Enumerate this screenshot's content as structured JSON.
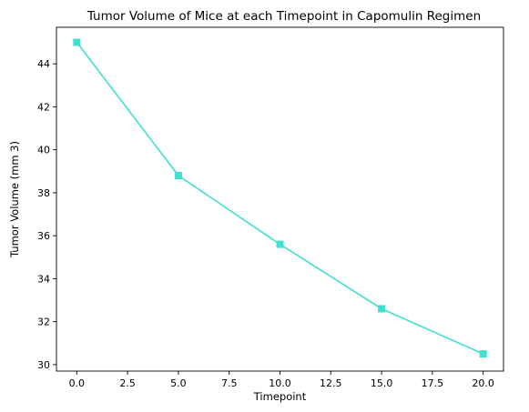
{
  "chart_data": {
    "type": "line",
    "title": "Tumor Volume of Mice at each Timepoint in Capomulin Regimen",
    "xlabel": "Timepoint",
    "ylabel": "Tumor Volume (mm 3)",
    "x": [
      0,
      5,
      10,
      15,
      20
    ],
    "series": [
      {
        "values": [
          45.0,
          38.8,
          35.6,
          32.6,
          30.5
        ],
        "color": "#40E0D0",
        "marker": "square"
      }
    ],
    "xlim": [
      -1,
      21
    ],
    "ylim": [
      29.7,
      45.7
    ],
    "xticks": [
      0,
      2.5,
      5,
      7.5,
      10,
      12.5,
      15,
      17.5,
      20
    ],
    "xtick_labels": [
      "0.0",
      "2.5",
      "5.0",
      "7.5",
      "10.0",
      "12.5",
      "15.0",
      "17.5",
      "20.0"
    ],
    "yticks": [
      30,
      32,
      34,
      36,
      38,
      40,
      42,
      44
    ],
    "ytick_labels": [
      "30",
      "32",
      "34",
      "36",
      "38",
      "40",
      "42",
      "44"
    ],
    "grid": false,
    "legend": "none"
  }
}
